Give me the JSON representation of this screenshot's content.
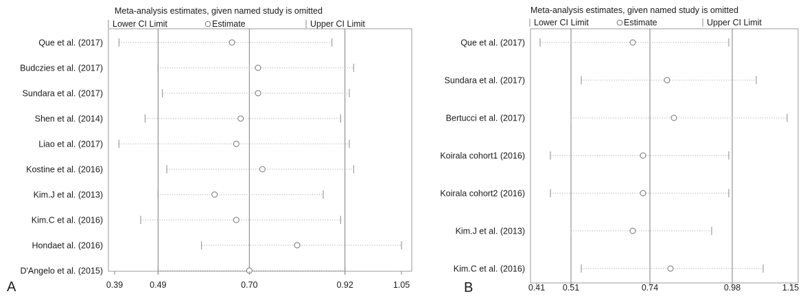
{
  "chart_data": [
    {
      "type": "scatter",
      "panel_label": "A",
      "title": "Meta-analysis estimates, given named study is omitted",
      "legend": [
        "Lower CI Limit",
        "Estimate",
        "Upper CI Limit"
      ],
      "legend_placement": "top",
      "xticks": [
        0.39,
        0.49,
        0.7,
        0.92,
        1.05
      ],
      "xtick_labels": [
        "0.39",
        "0.49",
        "0.70",
        "0.92",
        "1.05"
      ],
      "xlim": [
        0.39,
        1.05
      ],
      "reference_lines": [
        0.49,
        0.7,
        0.92
      ],
      "studies": [
        {
          "name": "Que et al. (2017)",
          "lower": 0.4,
          "estimate": 0.66,
          "upper": 0.89
        },
        {
          "name": "Budczies et al. (2017)",
          "lower": 0.49,
          "estimate": 0.72,
          "upper": 0.94
        },
        {
          "name": "Sundara et al. (2017)",
          "lower": 0.5,
          "estimate": 0.72,
          "upper": 0.93
        },
        {
          "name": "Shen et al. (2014)",
          "lower": 0.46,
          "estimate": 0.68,
          "upper": 0.91
        },
        {
          "name": "Liao et al. (2017)",
          "lower": 0.4,
          "estimate": 0.67,
          "upper": 0.93
        },
        {
          "name": "Kostine et al. (2016)",
          "lower": 0.51,
          "estimate": 0.73,
          "upper": 0.94
        },
        {
          "name": "Kim.J et al. (2013)",
          "lower": 0.49,
          "estimate": 0.62,
          "upper": 0.87
        },
        {
          "name": "Kim.C et al. (2016)",
          "lower": 0.45,
          "estimate": 0.67,
          "upper": 0.91
        },
        {
          "name": "Hondaet al. (2016)",
          "lower": 0.59,
          "estimate": 0.81,
          "upper": 1.05
        },
        {
          "name": "D'Angelo et al. (2015)",
          "lower": 0.49,
          "estimate": 0.7,
          "upper": 0.92
        }
      ]
    },
    {
      "type": "scatter",
      "panel_label": "B",
      "title": "Meta-analysis estimates, given named study is omitted",
      "legend": [
        "Lower CI Limit",
        "Estimate",
        "Upper CI Limit"
      ],
      "legend_placement": "top",
      "xticks": [
        0.41,
        0.51,
        0.74,
        0.98,
        1.15
      ],
      "xtick_labels": [
        "0.41",
        "0.51",
        "0.74",
        "0.98",
        "1.15"
      ],
      "xlim": [
        0.41,
        1.15
      ],
      "reference_lines": [
        0.51,
        0.74,
        0.98
      ],
      "studies": [
        {
          "name": "Que et al. (2017)",
          "lower": 0.42,
          "estimate": 0.69,
          "upper": 0.97
        },
        {
          "name": "Sundara et al. (2017)",
          "lower": 0.54,
          "estimate": 0.79,
          "upper": 1.05
        },
        {
          "name": "Bertucci et al. (2017)",
          "lower": 0.51,
          "estimate": 0.81,
          "upper": 1.14
        },
        {
          "name": "Koirala cohort1 (2016)",
          "lower": 0.45,
          "estimate": 0.72,
          "upper": 0.97
        },
        {
          "name": "Koirala cohort2 (2016)",
          "lower": 0.45,
          "estimate": 0.72,
          "upper": 0.97
        },
        {
          "name": "Kim.J et al. (2013)",
          "lower": 0.51,
          "estimate": 0.69,
          "upper": 0.92
        },
        {
          "name": "Kim.C et al. (2016)",
          "lower": 0.54,
          "estimate": 0.8,
          "upper": 1.07
        }
      ]
    }
  ]
}
